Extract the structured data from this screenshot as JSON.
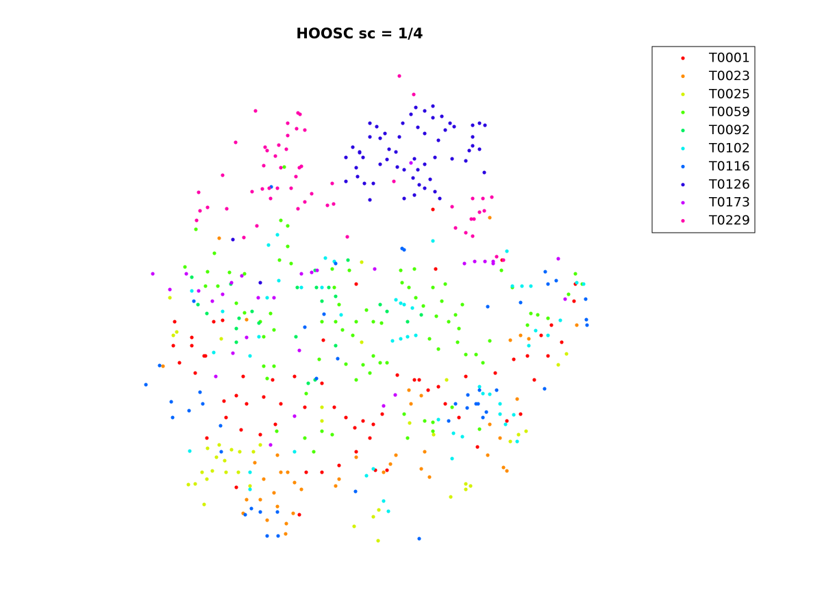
{
  "chart_data": {
    "type": "scatter",
    "title": "HOOSC sc = 1/4",
    "xlim": [
      200,
      870
    ],
    "ylim": [
      800,
      100
    ],
    "legend": "outside-right",
    "series": [
      {
        "name": "T0001",
        "color": "#ff0000",
        "x": [
          327,
          345,
          360,
          330,
          352,
          385,
          398,
          410,
          402,
          380,
          430,
          445,
          470,
          472,
          488,
          505,
          518,
          530,
          545,
          558,
          540,
          520,
          495,
          470,
          447,
          437,
          345,
          302,
          300,
          280,
          262,
          285,
          298,
          312,
          280,
          255,
          253,
          325,
          355,
          580,
          612,
          625,
          640,
          650,
          670,
          605,
          680,
          697,
          723,
          740,
          760,
          770,
          790,
          800,
          820,
          838,
          840,
          750,
          805,
          636,
          520,
          632,
          733,
          780,
          565,
          548
        ],
        "values": [
          586,
          578,
          590,
          610,
          628,
          580,
          555,
          590,
          620,
          635,
          550,
          595,
          560,
          497,
          595,
          610,
          625,
          615,
          620,
          605,
          640,
          660,
          680,
          690,
          690,
          752,
          712,
          640,
          520,
          505,
          530,
          545,
          520,
          470,
          493,
          470,
          505,
          468,
          550,
          548,
          555,
          570,
          565,
          590,
          610,
          555,
          550,
          653,
          545,
          615,
          605,
          520,
          490,
          520,
          500,
          440,
          415,
          525,
          475,
          393,
          415,
          306,
          380,
          555,
          687,
          687
        ]
      },
      {
        "name": "T0023",
        "color": "#ff8c00",
        "x": [
          320,
          360,
          238,
          745,
          760,
          842,
          715,
          597,
          615,
          600,
          620,
          615,
          627,
          578,
          570,
          560,
          520,
          490,
          495,
          405,
          410,
          385,
          400,
          380,
          405,
          390,
          417,
          418,
          428,
          440,
          430,
          360,
          355,
          372,
          420,
          740,
          735,
          755,
          715,
          712,
          730,
          772
        ],
        "values": [
          348,
          467,
          535,
          497,
          490,
          475,
          318,
          570,
          578,
          590,
          660,
          685,
          697,
          665,
          678,
          690,
          668,
          710,
          700,
          665,
          690,
          700,
          720,
          730,
          740,
          760,
          780,
          765,
          750,
          715,
          705,
          730,
          750,
          676,
          690,
          688,
          683,
          583,
          620,
          665,
          640,
          495
        ]
      },
      {
        "name": "T0025",
        "color": "#d4f200",
        "x": [
          248,
          253,
          258,
          275,
          285,
          298,
          302,
          295,
          310,
          320,
          316,
          330,
          338,
          350,
          348,
          365,
          370,
          380,
          303,
          328,
          470,
          470,
          517,
          545,
          553,
          552,
          598,
          633,
          658,
          680,
          687,
          680,
          745,
          757,
          768,
          815,
          827,
          528,
          528,
          323,
          652
        ],
        "values": [
          435,
          490,
          485,
          708,
          707,
          737,
          700,
          690,
          688,
          650,
          668,
          690,
          657,
          660,
          690,
          710,
          660,
          650,
          655,
          673,
          595,
          615,
          769,
          755,
          745,
          790,
          618,
          635,
          726,
          715,
          710,
          707,
          645,
          635,
          630,
          533,
          517,
          383,
          500,
          495,
          555
        ]
      },
      {
        "name": "T0059",
        "color": "#4cff00",
        "x": [
          270,
          303,
          313,
          286,
          300,
          318,
          335,
          357,
          345,
          357,
          380,
          385,
          400,
          395,
          408,
          420,
          410,
          420,
          425,
          415,
          385,
          400,
          390,
          447,
          470,
          466,
          490,
          500,
          515,
          520,
          535,
          545,
          557,
          545,
          555,
          565,
          530,
          505,
          520,
          540,
          585,
          605,
          587,
          597,
          607,
          618,
          632,
          645,
          650,
          637,
          655,
          670,
          675,
          665,
          627,
          640,
          668,
          680,
          695,
          705,
          715,
          775,
          785,
          800,
          770,
          840,
          850,
          830,
          488,
          495,
          510,
          485,
          595,
          620,
          632,
          660,
          632,
          590,
          404,
          445,
          458,
          470,
          485,
          700,
          732,
          748
        ],
        "values": [
          390,
          397,
          370,
          335,
          418,
          418,
          398,
          400,
          443,
          457,
          470,
          492,
          482,
          458,
          380,
          330,
          322,
          360,
          385,
          244,
          535,
          535,
          553,
          575,
          470,
          525,
          470,
          482,
          490,
          470,
          453,
          470,
          472,
          520,
          530,
          530,
          533,
          532,
          555,
          545,
          395,
          393,
          413,
          420,
          435,
          447,
          420,
          440,
          415,
          462,
          470,
          480,
          445,
          460,
          495,
          510,
          500,
          518,
          518,
          530,
          498,
          458,
          460,
          465,
          475,
          400,
          415,
          430,
          420,
          445,
          395,
          393,
          640,
          615,
          617,
          595,
          630,
          605,
          630,
          640,
          660,
          630,
          635,
          627,
          395,
          420
        ]
      },
      {
        "name": "T0092",
        "color": "#00f060",
        "x": [
          280,
          289,
          302,
          337,
          345,
          349,
          368,
          378,
          434,
          460,
          462,
          470,
          480,
          508,
          555,
          490,
          565,
          595,
          615,
          345,
          432,
          490,
          460,
          450
        ],
        "values": [
          405,
          445,
          458,
          415,
          480,
          465,
          455,
          472,
          420,
          395,
          420,
          440,
          420,
          380,
          445,
          433,
          455,
          470,
          460,
          500,
          492,
          505,
          555,
          560
        ]
      },
      {
        "name": "T0102",
        "color": "#00f0f0",
        "x": [
          280,
          325,
          312,
          365,
          378,
          390,
          407,
          405,
          392,
          475,
          488,
          440,
          470,
          498,
          578,
          585,
          590,
          602,
          573,
          585,
          595,
          607,
          632,
          730,
          738,
          755,
          640,
          662,
          675,
          705,
          715,
          660,
          700,
          730,
          560,
          567,
          535,
          545,
          365,
          365,
          430,
          277,
          748,
          762,
          775,
          782,
          800,
          818,
          842,
          852,
          772,
          740,
          750
        ],
        "values": [
          425,
          455,
          515,
          520,
          492,
          435,
          410,
          343,
          358,
          377,
          382,
          420,
          420,
          460,
          438,
          443,
          445,
          450,
          498,
          495,
          492,
          490,
          352,
          605,
          620,
          645,
          613,
          633,
          638,
          575,
          576,
          670,
          565,
          590,
          732,
          747,
          695,
          685,
          690,
          715,
          660,
          659,
          418,
          418,
          418,
          483,
          490,
          468,
          413,
          415,
          505,
          367,
          606
        ]
      },
      {
        "name": "T0116",
        "color": "#0066ff",
        "x": [
          213,
          233,
          250,
          252,
          276,
          292,
          296,
          322,
          323,
          358,
          367,
          380,
          405,
          390,
          406,
          612,
          519,
          493,
          462,
          445,
          473,
          490,
          587,
          590,
          655,
          665,
          683,
          682,
          695,
          700,
          710,
          725,
          698,
          705,
          712,
          795,
          796,
          800,
          812,
          855,
          856,
          857,
          396,
          283,
          760
        ],
        "values": [
          562,
          534,
          587,
          610,
          600,
          573,
          590,
          622,
          660,
          752,
          743,
          748,
          748,
          783,
          783,
          787,
          718,
          524,
          553,
          478,
          459,
          385,
          363,
          365,
          615,
          590,
          577,
          596,
          590,
          570,
          602,
          570,
          590,
          610,
          448,
          568,
          397,
          415,
          410,
          437,
          467,
          475,
          273,
          440,
          442
        ]
      },
      {
        "name": "T0126",
        "color": "#2a00e0",
        "x": [
          583,
          562,
          565,
          530,
          540,
          505,
          515,
          525,
          520,
          505,
          522,
          532,
          545,
          555,
          568,
          578,
          580,
          590,
          603,
          605,
          610,
          620,
          628,
          620,
          635,
          605,
          590,
          612,
          610,
          620,
          607,
          620,
          632,
          632,
          645,
          650,
          657,
          663,
          640,
          635,
          660,
          680,
          685,
          690,
          690,
          690,
          700,
          708,
          700,
          707,
          642,
          540,
          550,
          555,
          588,
          600,
          540,
          340,
          380,
          525
        ],
        "values": [
          200,
          195,
          233,
          230,
          200,
          230,
          215,
          222,
          245,
          265,
          258,
          268,
          268,
          240,
          218,
          222,
          244,
          248,
          260,
          232,
          248,
          240,
          262,
          275,
          280,
          285,
          290,
          270,
          186,
          195,
          157,
          162,
          155,
          172,
          170,
          190,
          180,
          185,
          205,
          230,
          232,
          235,
          220,
          213,
          200,
          183,
          180,
          183,
          218,
          252,
          290,
          180,
          185,
          202,
          180,
          167,
          292,
          350,
          413,
          223
        ]
      },
      {
        "name": "T0173",
        "color": "#c800ff",
        "x": [
          223,
          248,
          272,
          290,
          310,
          325,
          338,
          353,
          377,
          400,
          440,
          455,
          463,
          340,
          360,
          315,
          437,
          577,
          560,
          430,
          395,
          547,
          678,
          693,
          708,
          720,
          815,
          825,
          600,
          720
        ],
        "values": [
          400,
          423,
          400,
          425,
          440,
          430,
          413,
          403,
          435,
          435,
          400,
          398,
          395,
          516,
          493,
          550,
          512,
          577,
          593,
          608,
          650,
          393,
          385,
          382,
          382,
          385,
          378,
          437,
          238,
          382
        ]
      },
      {
        "name": "T0229",
        "color": "#ff00aa",
        "x": [
          583,
          604,
          373,
          435,
          438,
          420,
          433,
          445,
          420,
          407,
          387,
          390,
          418,
          402,
          385,
          410,
          437,
          440,
          325,
          344,
          290,
          292,
          287,
          303,
          331,
          356,
          375,
          368,
          383,
          393,
          405,
          425,
          432,
          395,
          435,
          445,
          455,
          487,
          485,
          478,
          507,
          575,
          690,
          705,
          718,
          707,
          700,
          692,
          688,
          665,
          680,
          690,
          660,
          725,
          735
        ],
        "values": [
          111,
          138,
          162,
          165,
          167,
          180,
          188,
          190,
          198,
          212,
          215,
          220,
          218,
          228,
          242,
          245,
          245,
          243,
          256,
          208,
          281,
          308,
          322,
          303,
          305,
          347,
          330,
          280,
          276,
          275,
          275,
          275,
          258,
          290,
          305,
          295,
          283,
          298,
          268,
          300,
          346,
          265,
          290,
          290,
          288,
          308,
          310,
          320,
          320,
          333,
          340,
          345,
          302,
          375,
          380
        ]
      }
    ]
  }
}
